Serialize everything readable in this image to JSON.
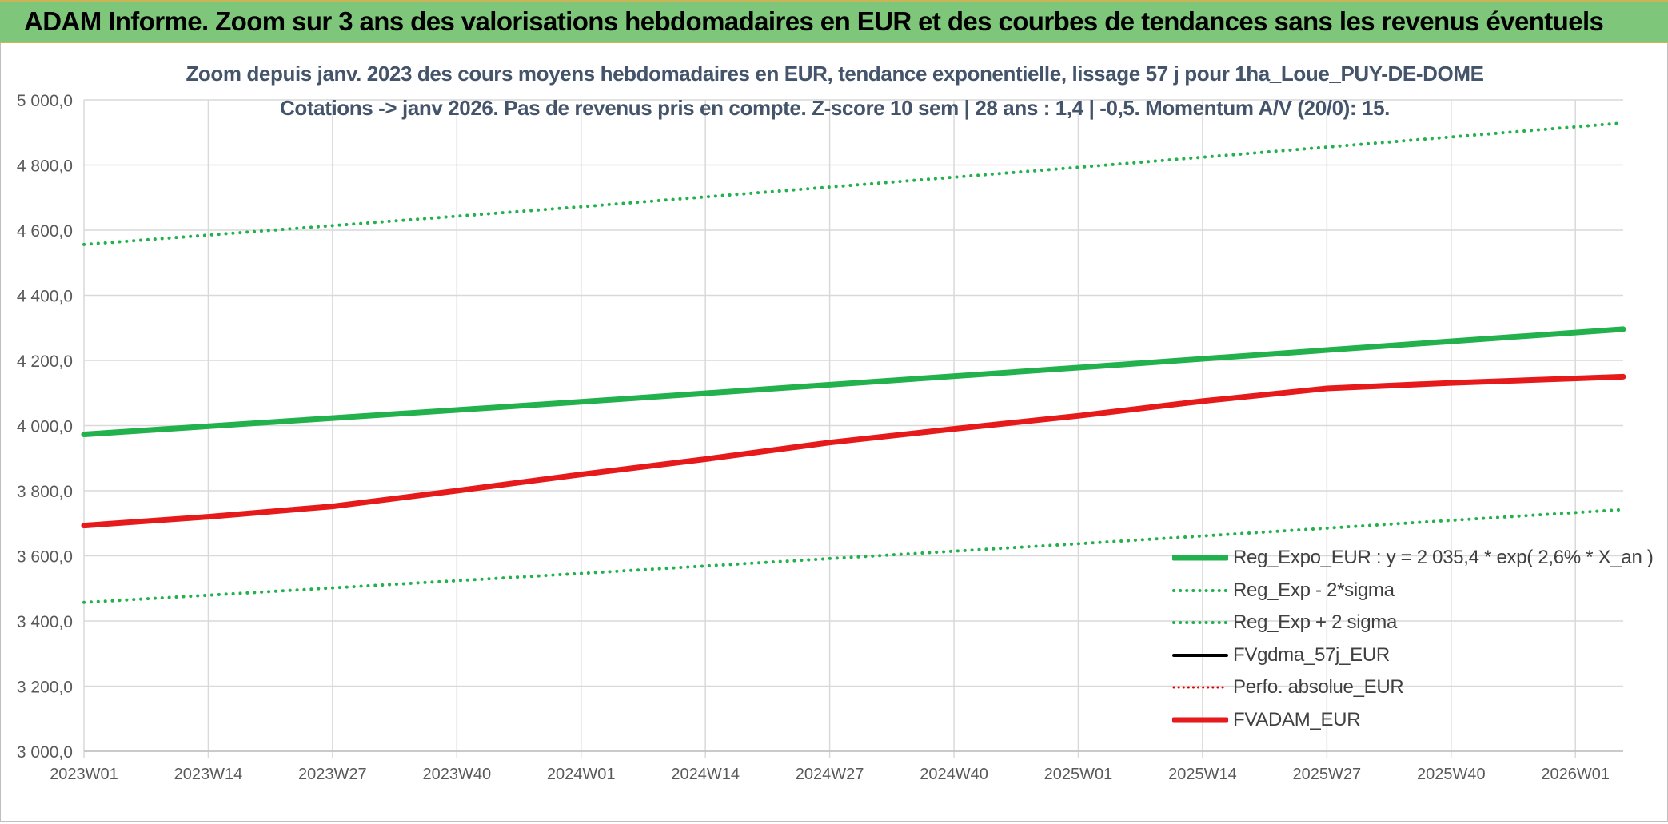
{
  "banner": {
    "title": "ADAM Informe. Zoom sur 3 ans des valorisations hebdomadaires en EUR et des courbes de tendances sans les revenus éventuels"
  },
  "colors": {
    "banner_bg": "#7dc67a",
    "reg_expo": "#22b14c",
    "reg_bands": "#22b14c",
    "fvgdma": "#000000",
    "perfo": "#e00000",
    "fvadam": "#e61a1a",
    "grid": "#d9d9d9",
    "axis_text": "#595959",
    "title_text": "#404040"
  },
  "chart_data": {
    "type": "line",
    "title": "Zoom depuis janv. 2023 des cours moyens hebdomadaires en EUR, tendance exponentielle, lissage 57 j pour 1ha_Loue_PUY-DE-DOME",
    "subtitle": "Cotations -> janv 2026. Pas de revenus pris en compte. Z-score 10 sem | 28 ans : 1,4 | -0,5. Momentum A/V (20/0): 15.",
    "xlabel": "",
    "ylabel": "",
    "ylim": [
      3000,
      5000
    ],
    "ytick_step": 200,
    "yticks": [
      "3 000,0",
      "3 200,0",
      "3 400,0",
      "3 600,0",
      "3 800,0",
      "4 000,0",
      "4 200,0",
      "4 400,0",
      "4 600,0",
      "4 800,0",
      "5 000,0"
    ],
    "x_weeks_total": 162,
    "x_ticks": [
      {
        "label": "2023W01",
        "week": 0
      },
      {
        "label": "2023W14",
        "week": 13
      },
      {
        "label": "2023W27",
        "week": 26
      },
      {
        "label": "2023W40",
        "week": 39
      },
      {
        "label": "2024W01",
        "week": 52
      },
      {
        "label": "2024W14",
        "week": 65
      },
      {
        "label": "2024W27",
        "week": 78
      },
      {
        "label": "2024W40",
        "week": 91
      },
      {
        "label": "2025W01",
        "week": 104
      },
      {
        "label": "2025W14",
        "week": 117
      },
      {
        "label": "2025W27",
        "week": 130
      },
      {
        "label": "2025W40",
        "week": 143
      },
      {
        "label": "2026W01",
        "week": 156
      }
    ],
    "grid": true,
    "legend_position": "bottom-right",
    "series": [
      {
        "name": "Reg_Expo_EUR : y = 2 035,4 * exp( 2,6% *  X_an )",
        "style": "solid",
        "width": 7,
        "color_key": "reg_expo",
        "points": [
          [
            0,
            3973
          ],
          [
            52,
            4073
          ],
          [
            104,
            4178
          ],
          [
            161,
            4296
          ]
        ]
      },
      {
        "name": "Reg_Exp - 2*sigma",
        "style": "dotted",
        "width": 4,
        "color_key": "reg_bands",
        "points": [
          [
            0,
            3457
          ],
          [
            52,
            3546
          ],
          [
            104,
            3637
          ],
          [
            161,
            3742
          ]
        ]
      },
      {
        "name": "Reg_Exp + 2 sigma",
        "style": "dotted",
        "width": 4,
        "color_key": "reg_bands",
        "points": [
          [
            0,
            4556
          ],
          [
            52,
            4672
          ],
          [
            104,
            4793
          ],
          [
            161,
            4929
          ]
        ]
      },
      {
        "name": "FVgdma_57j_EUR",
        "style": "solid",
        "width": 4,
        "color_key": "fvgdma",
        "points": [
          [
            0,
            3693
          ],
          [
            13,
            3722
          ],
          [
            26,
            3755
          ],
          [
            39,
            3800
          ],
          [
            52,
            3850
          ],
          [
            65,
            3897
          ],
          [
            78,
            3948
          ],
          [
            91,
            3990
          ],
          [
            104,
            4030
          ],
          [
            117,
            4075
          ],
          [
            130,
            4112
          ],
          [
            143,
            4130
          ],
          [
            161,
            4150
          ]
        ]
      },
      {
        "name": "Perfo. absolue_EUR",
        "style": "dotted",
        "width": 3,
        "color_key": "perfo",
        "points": []
      },
      {
        "name": "FVADAM_EUR",
        "style": "solid",
        "width": 7,
        "color_key": "fvadam",
        "points": [
          [
            0,
            3693
          ],
          [
            13,
            3720
          ],
          [
            26,
            3752
          ],
          [
            39,
            3800
          ],
          [
            52,
            3850
          ],
          [
            65,
            3897
          ],
          [
            78,
            3948
          ],
          [
            91,
            3990
          ],
          [
            104,
            4030
          ],
          [
            117,
            4075
          ],
          [
            130,
            4114
          ],
          [
            143,
            4131
          ],
          [
            161,
            4150
          ]
        ]
      }
    ]
  }
}
